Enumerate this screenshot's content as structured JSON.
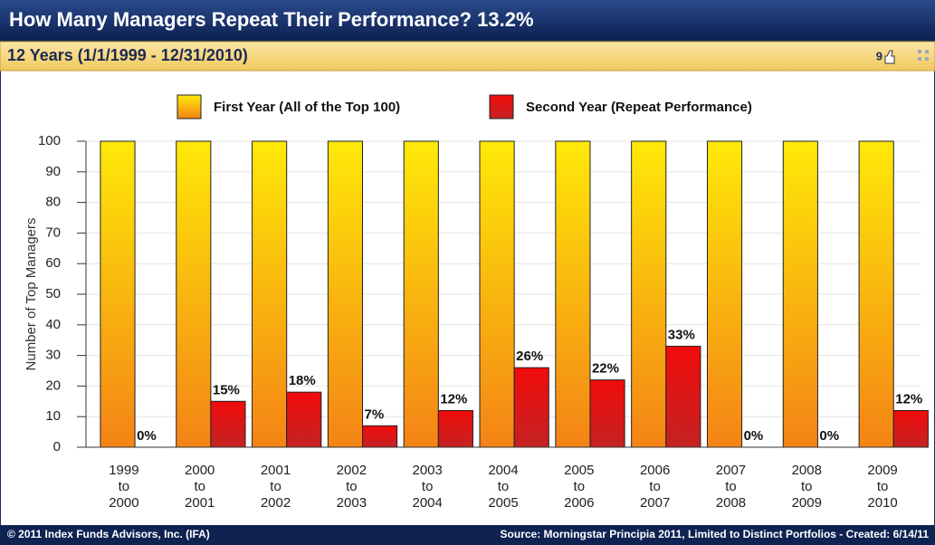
{
  "chart_data": {
    "type": "bar",
    "title": "How Many Managers Repeat Their Performance? 13.2%",
    "subtitle": "12 Years (1/1/1999 - 12/31/2010)",
    "like_count": 9,
    "y_label": "Number of Top Managers",
    "footer_left": "© 2011 Index Funds Advisors, Inc. (IFA)",
    "footer_right": "Source: Morningstar Principia 2011, Limited to Distinct Portfolios - Created: 6/14/11",
    "categories": [
      [
        "1999",
        "to",
        "2000"
      ],
      [
        "2000",
        "to",
        "2001"
      ],
      [
        "2001",
        "to",
        "2002"
      ],
      [
        "2002",
        "to",
        "2003"
      ],
      [
        "2003",
        "to",
        "2004"
      ],
      [
        "2004",
        "to",
        "2005"
      ],
      [
        "2005",
        "to",
        "2006"
      ],
      [
        "2006",
        "to",
        "2007"
      ],
      [
        "2007",
        "to",
        "2008"
      ],
      [
        "2008",
        "to",
        "2009"
      ],
      [
        "2009",
        "to",
        "2010"
      ]
    ],
    "series": [
      {
        "name": "First Year (All of the Top 100)",
        "color": "#f9a81f",
        "values": [
          100,
          100,
          100,
          100,
          100,
          100,
          100,
          100,
          100,
          100,
          100
        ]
      },
      {
        "name": "Second Year (Repeat Performance)",
        "color": "#de1b1b",
        "values": [
          0,
          15,
          18,
          7,
          12,
          26,
          22,
          33,
          0,
          0,
          12
        ],
        "value_labels": [
          "0%",
          "15%",
          "18%",
          "7%",
          "12%",
          "26%",
          "22%",
          "33%",
          "0%",
          "0%",
          "12%"
        ]
      }
    ],
    "ylim": [
      0,
      100
    ],
    "yticks": [
      0,
      10,
      20,
      30,
      40,
      50,
      60,
      70,
      80,
      90,
      100
    ],
    "grid": true
  }
}
